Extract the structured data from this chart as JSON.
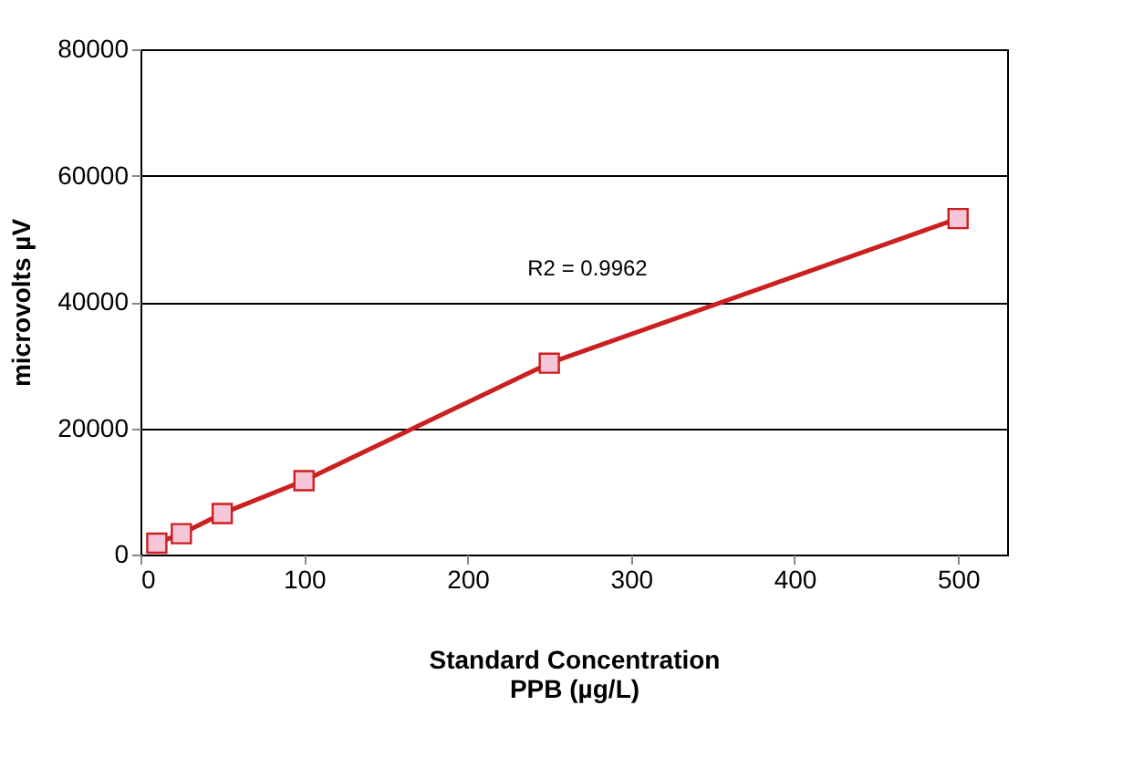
{
  "chart_data": {
    "type": "line",
    "xlabel": "Standard Concentration\nPPB (µg/L)",
    "ylabel": "microvolts µV",
    "x": [
      10,
      25,
      50,
      100,
      250,
      500
    ],
    "series": [
      {
        "color": "#cc1f1f",
        "values": [
          1800,
          3300,
          6500,
          11700,
          30300,
          53200
        ]
      }
    ],
    "xlim": [
      0,
      530
    ],
    "xticks": [
      0,
      100,
      200,
      300,
      400,
      500
    ],
    "ylim": [
      0,
      80000
    ],
    "yticks": [
      0,
      20000,
      40000,
      60000,
      80000
    ],
    "grid": "y",
    "marker": "square",
    "line_style": "solid",
    "annotations": [
      "R2 = 0.9962"
    ]
  }
}
